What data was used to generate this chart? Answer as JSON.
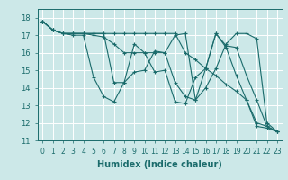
{
  "title": "",
  "xlabel": "Humidex (Indice chaleur)",
  "bg_color": "#cce8e8",
  "line_color": "#1a6b6b",
  "grid_color": "#ffffff",
  "xlim": [
    -0.5,
    23.5
  ],
  "ylim": [
    11,
    18.5
  ],
  "yticks": [
    11,
    12,
    13,
    14,
    15,
    16,
    17,
    18
  ],
  "xticks": [
    0,
    1,
    2,
    3,
    4,
    5,
    6,
    7,
    8,
    9,
    10,
    11,
    12,
    13,
    14,
    15,
    16,
    17,
    18,
    19,
    20,
    21,
    22,
    23
  ],
  "series": [
    [
      17.8,
      17.3,
      17.1,
      17.0,
      17.0,
      14.6,
      13.5,
      13.2,
      14.3,
      16.5,
      16.0,
      14.9,
      15.0,
      13.2,
      13.1,
      14.6,
      15.1,
      17.1,
      16.3,
      14.7,
      13.3,
      11.8,
      11.7,
      11.5
    ],
    [
      17.8,
      17.3,
      17.1,
      17.1,
      17.1,
      17.1,
      17.1,
      17.1,
      17.1,
      17.1,
      17.1,
      17.1,
      17.1,
      17.1,
      16.0,
      15.6,
      15.1,
      14.7,
      14.2,
      13.8,
      13.3,
      12.0,
      11.8,
      11.5
    ],
    [
      17.8,
      17.3,
      17.1,
      17.1,
      17.1,
      17.0,
      16.9,
      16.5,
      16.0,
      16.0,
      16.0,
      16.0,
      16.0,
      14.3,
      13.5,
      13.3,
      14.0,
      15.1,
      16.5,
      17.1,
      17.1,
      16.8,
      12.0,
      11.5
    ],
    [
      17.8,
      17.3,
      17.1,
      17.1,
      17.1,
      17.1,
      17.1,
      14.3,
      14.3,
      14.9,
      15.0,
      16.1,
      16.0,
      17.0,
      17.1,
      13.3,
      15.1,
      17.1,
      16.4,
      16.3,
      14.7,
      13.3,
      11.8,
      11.5
    ]
  ]
}
